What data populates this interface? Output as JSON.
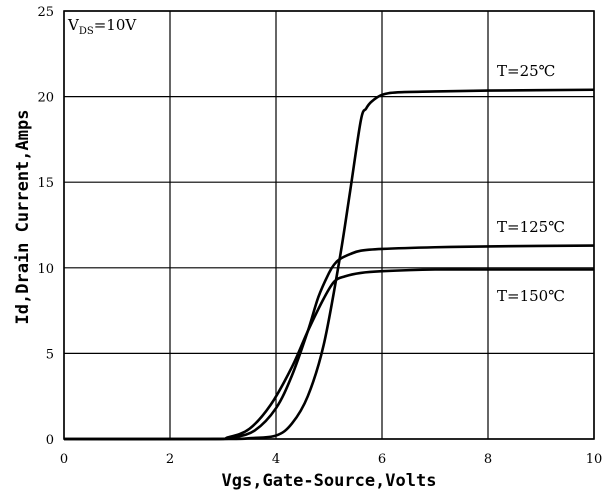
{
  "chart_data": {
    "type": "line",
    "title": "",
    "xlabel": "Vgs,Gate-Source,Volts",
    "ylabel": "Id,Drain Current,Amps",
    "xlim": [
      0,
      10
    ],
    "ylim": [
      0,
      25
    ],
    "xticks": [
      "0",
      "2",
      "4",
      "6",
      "8",
      "10"
    ],
    "yticks": [
      "0",
      "5",
      "10",
      "15",
      "20",
      "25"
    ],
    "grid": true,
    "legend": "inline labels near right end of each curve",
    "condition": {
      "main": "V",
      "sub": "DS",
      "rest": "=10V"
    },
    "series": [
      {
        "name": "T=25℃",
        "x": [
          0,
          3.0,
          3.5,
          4.0,
          4.3,
          4.6,
          4.9,
          5.2,
          5.4,
          5.6,
          5.7,
          5.8,
          6.0,
          6.3,
          7.0,
          8.0,
          10.0
        ],
        "y": [
          0,
          0,
          0.05,
          0.2,
          0.9,
          2.5,
          5.5,
          10.5,
          14.5,
          18.6,
          19.3,
          19.7,
          20.1,
          20.25,
          20.3,
          20.35,
          20.4
        ]
      },
      {
        "name": "T=125℃",
        "x": [
          0,
          2.8,
          3.2,
          3.6,
          4.0,
          4.3,
          4.6,
          4.8,
          5.0,
          5.1,
          5.2,
          5.4,
          5.6,
          6.0,
          7.0,
          8.0,
          10.0
        ],
        "y": [
          0,
          0,
          0.1,
          0.5,
          1.8,
          3.7,
          6.3,
          8.3,
          9.7,
          10.2,
          10.5,
          10.8,
          11.0,
          11.1,
          11.2,
          11.25,
          11.3
        ]
      },
      {
        "name": "T=150℃",
        "x": [
          0,
          2.7,
          3.1,
          3.5,
          3.9,
          4.3,
          4.6,
          4.9,
          5.1,
          5.3,
          5.6,
          6.0,
          7.0,
          8.0,
          10.0
        ],
        "y": [
          0,
          0,
          0.1,
          0.6,
          2.0,
          4.2,
          6.3,
          8.2,
          9.2,
          9.5,
          9.7,
          9.8,
          9.9,
          9.9,
          9.9
        ]
      }
    ]
  },
  "colors": {
    "line": "#000000",
    "grid": "#000000",
    "background": "#ffffff"
  }
}
